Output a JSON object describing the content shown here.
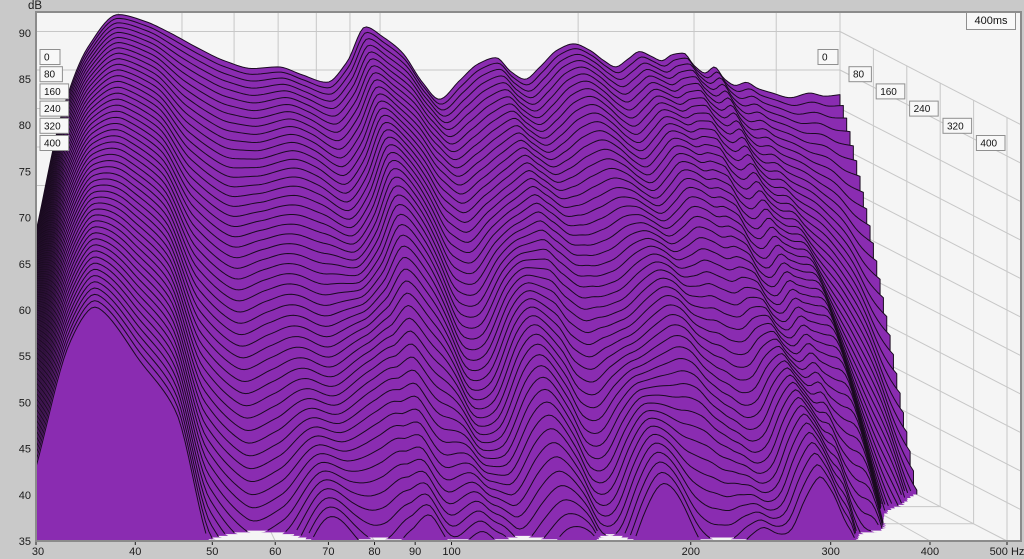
{
  "axes": {
    "db_unit": "dB",
    "db_ticks": [
      90,
      85,
      80,
      75,
      70,
      65,
      60,
      55,
      50,
      45,
      40,
      35
    ],
    "freq_tick_values": [
      30,
      40,
      50,
      60,
      70,
      80,
      90,
      100,
      200,
      300,
      400,
      500
    ],
    "freq_tick_labels": [
      "30",
      "40",
      "50",
      "60",
      "70",
      "80",
      "90",
      "100",
      "200",
      "300",
      "400",
      "500 Hz"
    ],
    "time_window_label": "400ms",
    "time_ticks_left": [
      "0",
      "80",
      "160",
      "240",
      "320",
      "400"
    ],
    "time_ticks_right": [
      "0",
      "80",
      "160",
      "240",
      "320",
      "400"
    ]
  },
  "colors": {
    "page_bg": "#c9c9c9",
    "plot_bg": "#f5f5f5",
    "grid": "#c7c7c7",
    "border": "#8b8b8b",
    "fill": "#8a2cb1",
    "outline": "#1a0b20",
    "text": "#1b1b1b",
    "badge_bg": "#f8f8f8",
    "badge_border": "#8f8f8f"
  },
  "chart_data": {
    "type": "area",
    "subtype": "cumulative-spectral-decay-waterfall",
    "x_axis": {
      "label": "Hz",
      "scale": "log",
      "min": 30,
      "max": 500,
      "ticks": [
        30,
        40,
        50,
        60,
        70,
        80,
        90,
        100,
        200,
        300,
        400,
        500
      ]
    },
    "y_axis": {
      "label": "dB",
      "min": 35,
      "max": 92.5,
      "ticks": [
        35,
        40,
        45,
        50,
        55,
        60,
        65,
        70,
        75,
        80,
        85,
        90
      ]
    },
    "time_axis": {
      "label": "ms",
      "min": 0,
      "max": 400,
      "window_label": "400ms",
      "ticks": [
        0,
        80,
        160,
        240,
        320,
        400
      ],
      "num_slices": 51,
      "slice_step_ms": 8
    },
    "legend_position": "none",
    "grid": true,
    "spectrum_t0_db": {
      "freq_hz": [
        30,
        33,
        36,
        40,
        44,
        48,
        53,
        58,
        64,
        70,
        76,
        83,
        89,
        95,
        101,
        108,
        116,
        123,
        132,
        141,
        150,
        158,
        166,
        175,
        186,
        197,
        208,
        219,
        228,
        238,
        248,
        258,
        268,
        278,
        289,
        300,
        312,
        322,
        334,
        347,
        360,
        375,
        395,
        420,
        450,
        475,
        500
      ],
      "db": [
        64,
        80,
        88,
        92.2,
        91.3,
        89.8,
        87.8,
        86.2,
        85.2,
        85.4,
        84.4,
        83.4,
        86,
        90.6,
        89.3,
        87.3,
        83.4,
        81.2,
        83.6,
        85.8,
        86.6,
        84.8,
        83.8,
        85.4,
        87.6,
        88.4,
        87.6,
        86.2,
        85.4,
        86.4,
        87.4,
        86.8,
        86.2,
        87,
        87.2,
        85.6,
        84.6,
        85.4,
        83.8,
        83,
        83.4,
        82.6,
        82,
        81.4,
        82,
        81.6,
        81.8
      ]
    },
    "total_decay_db_at_400ms": {
      "freq_hz": [
        30,
        35,
        40,
        45,
        50,
        56,
        62,
        70,
        80,
        90,
        95,
        103,
        112,
        122,
        135,
        150,
        170,
        200,
        230,
        260,
        300,
        350,
        400,
        450,
        500
      ],
      "db_drop": [
        21,
        26,
        37,
        42,
        55,
        58,
        54,
        50,
        50,
        49,
        50,
        53,
        54,
        50,
        48,
        49,
        50,
        51,
        50,
        50,
        49,
        52,
        65,
        85,
        105
      ]
    },
    "decay_exponent": 1.1,
    "ripple": {
      "gate_start": 0.18,
      "gate_width": 0.22,
      "components": [
        {
          "amp": 2.8,
          "cycles": 6.2,
          "phase": 1.2,
          "drift": 6.8
        },
        {
          "amp": 1.7,
          "cycles": 11.5,
          "phase": 4.2,
          "drift": -5.2
        }
      ]
    }
  }
}
